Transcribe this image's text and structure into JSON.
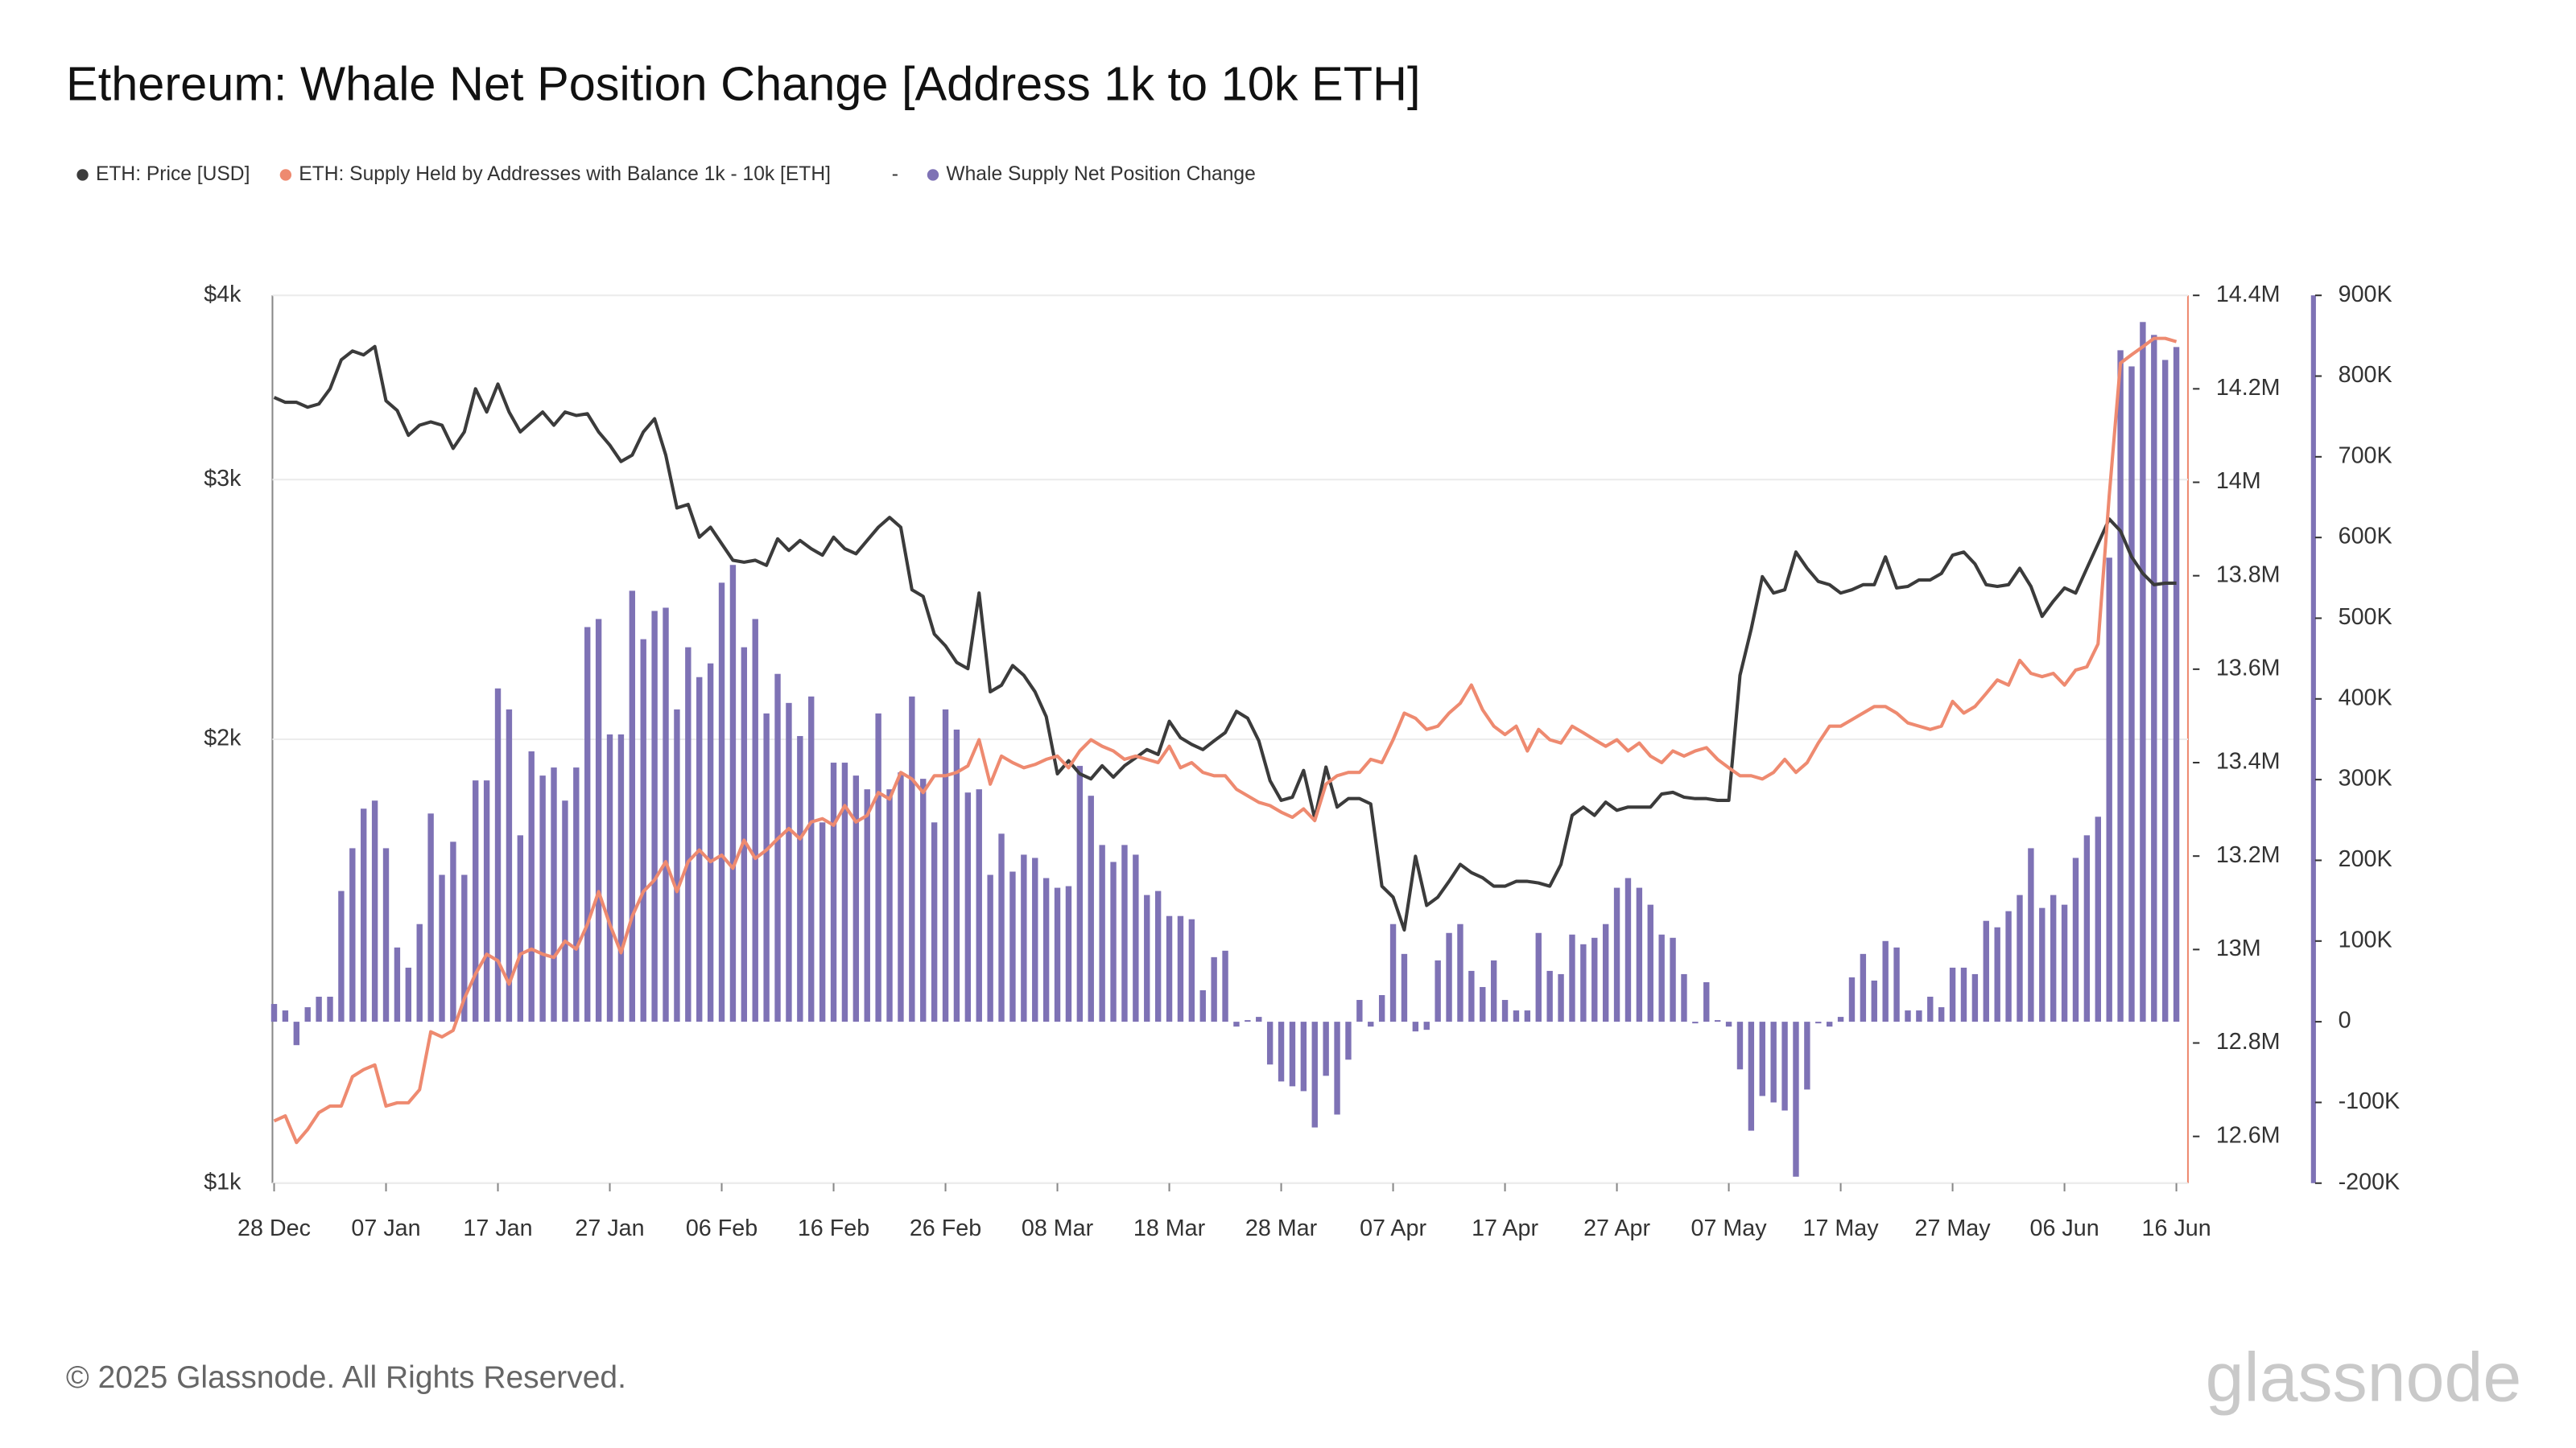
{
  "chart_data": {
    "type": "line",
    "title": "Ethereum: Whale Net Position Change [Address 1k to 10k ETH]",
    "legend_separator": "-",
    "footer": "© 2025 Glassnode. All Rights Reserved.",
    "logo": "glassnode",
    "yscale": "log",
    "grid": true,
    "categories": [
      "28 Dec",
      null,
      null,
      null,
      null,
      null,
      null,
      null,
      null,
      null,
      "07 Jan",
      null,
      null,
      null,
      null,
      null,
      null,
      null,
      null,
      null,
      "17 Jan",
      null,
      null,
      null,
      null,
      null,
      null,
      null,
      null,
      null,
      "27 Jan",
      null,
      null,
      null,
      null,
      null,
      null,
      null,
      null,
      null,
      "06 Feb",
      null,
      null,
      null,
      null,
      null,
      null,
      null,
      null,
      null,
      "16 Feb",
      null,
      null,
      null,
      null,
      null,
      null,
      null,
      null,
      null,
      "26 Feb",
      null,
      null,
      null,
      null,
      null,
      null,
      null,
      null,
      null,
      "08 Mar",
      null,
      null,
      null,
      null,
      null,
      null,
      null,
      null,
      null,
      "18 Mar",
      null,
      null,
      null,
      null,
      null,
      null,
      null,
      null,
      null,
      "28 Mar",
      null,
      null,
      null,
      null,
      null,
      null,
      null,
      null,
      null,
      "07 Apr",
      null,
      null,
      null,
      null,
      null,
      null,
      null,
      null,
      null,
      "17 Apr",
      null,
      null,
      null,
      null,
      null,
      null,
      null,
      null,
      null,
      "27 Apr",
      null,
      null,
      null,
      null,
      null,
      null,
      null,
      null,
      null,
      "07 May",
      null,
      null,
      null,
      null,
      null,
      null,
      null,
      null,
      null,
      "17 May",
      null,
      null,
      null,
      null,
      null,
      null,
      null,
      null,
      null,
      "27 May",
      null,
      null,
      null,
      null,
      null,
      null,
      null,
      null,
      null,
      "06 Jun",
      null,
      null,
      null,
      null,
      null,
      null,
      null,
      null,
      null,
      "16 Jun"
    ],
    "ylim": [
      1000,
      4000
    ],
    "yticks": [
      {
        "value": 1000,
        "label": "$1k"
      },
      {
        "value": 2000,
        "label": "$2k"
      },
      {
        "value": 3000,
        "label": "$3k"
      },
      {
        "value": 4000,
        "label": "$4k"
      }
    ],
    "y2lim": [
      12500000,
      14400000
    ],
    "y2ticks": [
      {
        "value": 12600000,
        "label": "12.6M"
      },
      {
        "value": 12800000,
        "label": "12.8M"
      },
      {
        "value": 13000000,
        "label": "13M"
      },
      {
        "value": 13200000,
        "label": "13.2M"
      },
      {
        "value": 13400000,
        "label": "13.4M"
      },
      {
        "value": 13600000,
        "label": "13.6M"
      },
      {
        "value": 13800000,
        "label": "13.8M"
      },
      {
        "value": 14000000,
        "label": "14M"
      },
      {
        "value": 14200000,
        "label": "14.2M"
      },
      {
        "value": 14400000,
        "label": "14.4M"
      }
    ],
    "y3lim": [
      -200000,
      900000
    ],
    "y3ticks": [
      {
        "value": -200000,
        "label": "-200K"
      },
      {
        "value": -100000,
        "label": "-100K"
      },
      0,
      {
        "value": 100000,
        "label": "100K"
      },
      {
        "value": 200000,
        "label": "200K"
      },
      {
        "value": 300000,
        "label": "300K"
      },
      {
        "value": 400000,
        "label": "400K"
      },
      {
        "value": 500000,
        "label": "500K"
      },
      {
        "value": 600000,
        "label": "600K"
      },
      {
        "value": 700000,
        "label": "700K"
      },
      {
        "value": 800000,
        "label": "800K"
      },
      {
        "value": 900000,
        "label": "900K"
      }
    ],
    "series": [
      {
        "name": "ETH: Price [USD]",
        "color": "#3b3b3b",
        "type": "line",
        "axis": "y",
        "values": [
          3411,
          3385,
          3385,
          3359,
          3376,
          3457,
          3617,
          3667,
          3645,
          3693,
          3393,
          3342,
          3215,
          3266,
          3283,
          3266,
          3150,
          3232,
          3457,
          3334,
          3483,
          3334,
          3232,
          3283,
          3334,
          3266,
          3334,
          3316,
          3325,
          3232,
          3166,
          3086,
          3117,
          3232,
          3299,
          3117,
          2870,
          2886,
          2742,
          2785,
          2714,
          2645,
          2637,
          2645,
          2624,
          2735,
          2686,
          2728,
          2693,
          2666,
          2742,
          2693,
          2672,
          2728,
          2785,
          2828,
          2785,
          2526,
          2500,
          2357,
          2314,
          2255,
          2233,
          2513,
          2154,
          2176,
          2244,
          2210,
          2154,
          2072,
          1895,
          1934,
          1895,
          1880,
          1919,
          1885,
          1919,
          1943,
          1968,
          1953,
          2057,
          2005,
          1984,
          1968,
          1995,
          2021,
          2089,
          2067,
          1995,
          1875,
          1818,
          1827,
          1905,
          1767,
          1915,
          1799,
          1823,
          1823,
          1808,
          1590,
          1563,
          1485,
          1666,
          1543,
          1563,
          1602,
          1645,
          1624,
          1611,
          1590,
          1590,
          1602,
          1602,
          1598,
          1590,
          1645,
          1776,
          1799,
          1776,
          1813,
          1790,
          1799,
          1799,
          1799,
          1836,
          1841,
          1827,
          1823,
          1823,
          1818,
          1818,
          2210,
          2375,
          2578,
          2513,
          2526,
          2679,
          2612,
          2559,
          2546,
          2513,
          2526,
          2546,
          2546,
          2659,
          2533,
          2539,
          2565,
          2565,
          2591,
          2666,
          2679,
          2630,
          2546,
          2539,
          2546,
          2612,
          2539,
          2423,
          2481,
          2533,
          2513,
          2612,
          2714,
          2821,
          2769,
          2659,
          2591,
          2546,
          2552,
          2552
        ]
      },
      {
        "name": "ETH: Supply Held by Addresses with Balance 1k - 10k [ETH]",
        "color": "#ee8a70",
        "type": "line",
        "axis": "y2",
        "values": [
          12633000,
          12644000,
          12587000,
          12615000,
          12651000,
          12665000,
          12665000,
          12728000,
          12743000,
          12753000,
          12665000,
          12672000,
          12672000,
          12700000,
          12824000,
          12813000,
          12827000,
          12895000,
          12948000,
          12990000,
          12976000,
          12926000,
          12990000,
          13001000,
          12990000,
          12983000,
          13018000,
          13001000,
          13054000,
          13124000,
          13054000,
          12993000,
          13071000,
          13124000,
          13149000,
          13188000,
          13124000,
          13188000,
          13213000,
          13188000,
          13202000,
          13174000,
          13234000,
          13195000,
          13213000,
          13237000,
          13259000,
          13237000,
          13273000,
          13280000,
          13266000,
          13308000,
          13273000,
          13287000,
          13336000,
          13322000,
          13379000,
          13365000,
          13336000,
          13372000,
          13372000,
          13379000,
          13393000,
          13449000,
          13354000,
          13414000,
          13400000,
          13389000,
          13396000,
          13407000,
          13414000,
          13389000,
          13425000,
          13449000,
          13435000,
          13425000,
          13407000,
          13414000,
          13407000,
          13400000,
          13435000,
          13389000,
          13400000,
          13379000,
          13372000,
          13372000,
          13343000,
          13329000,
          13315000,
          13308000,
          13294000,
          13283000,
          13301000,
          13276000,
          13354000,
          13372000,
          13379000,
          13379000,
          13407000,
          13400000,
          13449000,
          13506000,
          13495000,
          13471000,
          13478000,
          13506000,
          13527000,
          13566000,
          13513000,
          13478000,
          13460000,
          13478000,
          13425000,
          13471000,
          13449000,
          13442000,
          13478000,
          13464000,
          13449000,
          13435000,
          13449000,
          13425000,
          13442000,
          13414000,
          13400000,
          13425000,
          13414000,
          13425000,
          13432000,
          13407000,
          13389000,
          13372000,
          13372000,
          13365000,
          13379000,
          13407000,
          13379000,
          13400000,
          13442000,
          13478000,
          13478000,
          13492000,
          13506000,
          13520000,
          13520000,
          13506000,
          13485000,
          13478000,
          13471000,
          13478000,
          13531000,
          13506000,
          13520000,
          13548000,
          13577000,
          13566000,
          13619000,
          13591000,
          13584000,
          13591000,
          13566000,
          13598000,
          13605000,
          13654000,
          13972000,
          14255000,
          14273000,
          14290000,
          14308000,
          14308000,
          14301000
        ]
      },
      {
        "name": "Whale Supply Net Position Change",
        "color": "#7e72b5",
        "type": "bar",
        "axis": "y3",
        "values": [
          22000,
          14000,
          -29000,
          18000,
          31000,
          31000,
          162000,
          215000,
          264000,
          274000,
          215000,
          92000,
          67000,
          121000,
          258000,
          182000,
          223000,
          182000,
          299000,
          299000,
          413000,
          387000,
          231000,
          335000,
          305000,
          315000,
          274000,
          315000,
          489000,
          499000,
          356000,
          356000,
          534000,
          474000,
          509000,
          513000,
          387000,
          464000,
          427000,
          444000,
          544000,
          566000,
          464000,
          499000,
          382000,
          431000,
          395000,
          354000,
          403000,
          247000,
          321000,
          321000,
          305000,
          288000,
          382000,
          288000,
          309000,
          403000,
          301000,
          247000,
          387000,
          362000,
          284000,
          288000,
          182000,
          233000,
          186000,
          207000,
          203000,
          178000,
          166000,
          168000,
          317000,
          280000,
          219000,
          198000,
          219000,
          207000,
          157000,
          162000,
          131000,
          131000,
          127000,
          39000,
          80000,
          88000,
          -6000,
          2000,
          6000,
          -53000,
          -74000,
          -80000,
          -86000,
          -131000,
          -67000,
          -115000,
          -47000,
          27000,
          -6000,
          33000,
          121000,
          84000,
          -12000,
          -10000,
          76000,
          110000,
          121000,
          63000,
          43000,
          76000,
          27000,
          14000,
          14000,
          110000,
          63000,
          59000,
          108000,
          96000,
          104000,
          121000,
          166000,
          178000,
          166000,
          145000,
          108000,
          104000,
          59000,
          -2000,
          49000,
          2000,
          -6000,
          -59000,
          -135000,
          -92000,
          -100000,
          -110000,
          -192000,
          -84000,
          -2000,
          -6000,
          6000,
          55000,
          84000,
          51000,
          100000,
          92000,
          14000,
          14000,
          31000,
          18000,
          67000,
          67000,
          59000,
          125000,
          117000,
          137000,
          157000,
          215000,
          141000,
          157000,
          145000,
          203000,
          231000,
          254000,
          575000,
          832000,
          812000,
          867000,
          851000,
          820000,
          836000
        ]
      }
    ]
  }
}
